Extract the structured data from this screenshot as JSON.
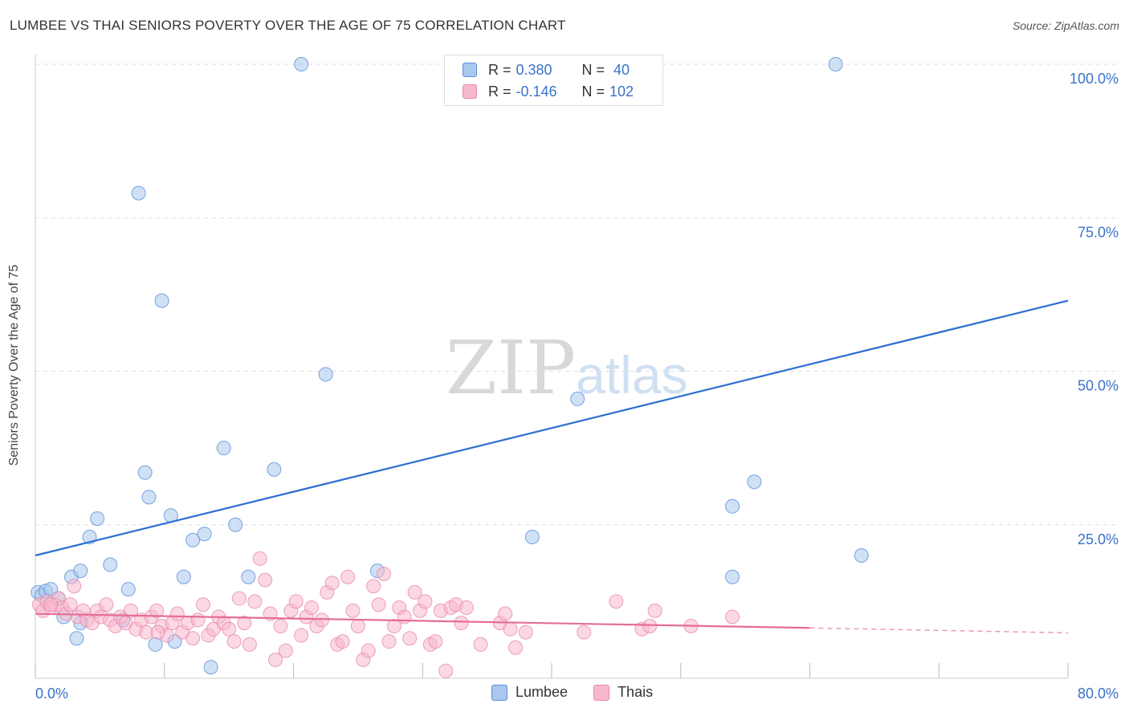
{
  "title": "LUMBEE VS THAI SENIORS POVERTY OVER THE AGE OF 75 CORRELATION CHART",
  "source": "Source: ZipAtlas.com",
  "watermark": {
    "zip": "ZIP",
    "atlas": "atlas"
  },
  "legend": {
    "series": [
      {
        "r_label": "R = ",
        "r_value": "0.380",
        "n_label": "N = ",
        "n_value": " 40",
        "color": "#aac8ee"
      },
      {
        "r_label": "R = ",
        "r_value": "-0.146",
        "n_label": "N = ",
        "n_value": "102",
        "color": "#f7b8cd"
      }
    ]
  },
  "bottom_legend": [
    {
      "label": "Lumbee",
      "color": "#aac8ee"
    },
    {
      "label": "Thais",
      "color": "#f7b8cd"
    }
  ],
  "chart_data": {
    "type": "scatter",
    "title": "LUMBEE VS THAI SENIORS POVERTY OVER THE AGE OF 75 CORRELATION CHART",
    "xlabel": "",
    "ylabel": "Seniors Poverty Over the Age of 75",
    "xlim": [
      0,
      80
    ],
    "ylim": [
      0,
      100
    ],
    "x_tick_labels": [
      "0.0%",
      "80.0%"
    ],
    "y_tick_labels": [
      "100.0%",
      "75.0%",
      "50.0%",
      "25.0%"
    ],
    "y_ticks": [
      100,
      75,
      50,
      25
    ],
    "series": [
      {
        "name": "Lumbee",
        "color": "#5a8fd8",
        "fill": "#aac8ee",
        "trend": {
          "x": [
            0,
            80
          ],
          "y": [
            20,
            61.5
          ],
          "color": "#2c6fd1"
        },
        "points": [
          [
            0.2,
            14
          ],
          [
            0.5,
            13.5
          ],
          [
            0.8,
            14.2
          ],
          [
            1.2,
            14.5
          ],
          [
            1.8,
            13
          ],
          [
            2.2,
            10
          ],
          [
            2.8,
            16.5
          ],
          [
            3.5,
            17.5
          ],
          [
            4.2,
            23
          ],
          [
            4.8,
            26
          ],
          [
            5.8,
            18.5
          ],
          [
            6.8,
            9.5
          ],
          [
            7.2,
            14.5
          ],
          [
            8,
            79
          ],
          [
            8.5,
            33.5
          ],
          [
            8.8,
            29.5
          ],
          [
            9.3,
            5.5
          ],
          [
            9.8,
            61.5
          ],
          [
            10.5,
            26.5
          ],
          [
            10.8,
            6
          ],
          [
            11.5,
            16.5
          ],
          [
            12.2,
            22.5
          ],
          [
            13.1,
            23.5
          ],
          [
            13.6,
            1.8
          ],
          [
            14.6,
            37.5
          ],
          [
            15.5,
            25
          ],
          [
            16.5,
            16.5
          ],
          [
            18.5,
            34
          ],
          [
            20.6,
            100
          ],
          [
            22.5,
            49.5
          ],
          [
            26.5,
            17.5
          ],
          [
            38.5,
            23
          ],
          [
            42,
            45.5
          ],
          [
            54,
            28
          ],
          [
            54,
            16.5
          ],
          [
            55.7,
            32
          ],
          [
            62,
            100
          ],
          [
            64,
            20
          ],
          [
            3.2,
            6.5
          ],
          [
            3.5,
            9
          ]
        ]
      },
      {
        "name": "Thais",
        "color": "#e98aa9",
        "fill": "#f7b8cd",
        "trend": {
          "x": [
            0,
            60,
            80
          ],
          "y": [
            10.5,
            8.2,
            7.4
          ],
          "color": "#e56d96",
          "dash_from": 60
        },
        "points": [
          [
            0.3,
            12
          ],
          [
            0.6,
            11
          ],
          [
            0.9,
            12.5
          ],
          [
            1.2,
            11.5
          ],
          [
            1.5,
            12
          ],
          [
            1.8,
            13
          ],
          [
            2.1,
            11.5
          ],
          [
            2.4,
            10.5
          ],
          [
            2.7,
            12
          ],
          [
            3,
            15
          ],
          [
            3.3,
            10
          ],
          [
            3.7,
            11
          ],
          [
            4,
            9.5
          ],
          [
            4.4,
            9
          ],
          [
            4.8,
            11
          ],
          [
            5.1,
            10
          ],
          [
            5.5,
            12
          ],
          [
            5.8,
            9.5
          ],
          [
            6.2,
            8.5
          ],
          [
            6.6,
            10
          ],
          [
            7,
            9
          ],
          [
            7.4,
            11
          ],
          [
            7.8,
            8
          ],
          [
            8.2,
            9.5
          ],
          [
            8.6,
            7.5
          ],
          [
            9,
            10
          ],
          [
            9.4,
            11
          ],
          [
            9.8,
            8.5
          ],
          [
            10.2,
            7
          ],
          [
            10.6,
            9
          ],
          [
            11,
            10.5
          ],
          [
            11.4,
            7.5
          ],
          [
            11.8,
            9
          ],
          [
            12.2,
            6.5
          ],
          [
            12.6,
            9.5
          ],
          [
            13,
            12
          ],
          [
            13.4,
            7
          ],
          [
            13.8,
            8
          ],
          [
            14.2,
            10
          ],
          [
            14.6,
            9
          ],
          [
            15,
            8
          ],
          [
            15.4,
            6
          ],
          [
            15.8,
            13
          ],
          [
            16.2,
            9
          ],
          [
            16.6,
            5.5
          ],
          [
            17,
            12.5
          ],
          [
            17.4,
            19.5
          ],
          [
            17.8,
            16
          ],
          [
            18.2,
            10.5
          ],
          [
            18.6,
            3
          ],
          [
            19,
            8.5
          ],
          [
            19.4,
            4.5
          ],
          [
            19.8,
            11
          ],
          [
            20.2,
            12.5
          ],
          [
            20.6,
            7
          ],
          [
            21,
            10
          ],
          [
            21.4,
            11.5
          ],
          [
            21.8,
            8.5
          ],
          [
            22.2,
            9.5
          ],
          [
            22.6,
            14
          ],
          [
            23,
            15.5
          ],
          [
            23.4,
            5.5
          ],
          [
            23.8,
            6
          ],
          [
            24.2,
            16.5
          ],
          [
            24.6,
            11
          ],
          [
            25,
            8.5
          ],
          [
            25.4,
            3
          ],
          [
            25.8,
            4.5
          ],
          [
            26.2,
            15
          ],
          [
            26.6,
            12
          ],
          [
            27,
            17
          ],
          [
            27.4,
            6
          ],
          [
            27.8,
            8.5
          ],
          [
            28.2,
            11.5
          ],
          [
            28.6,
            10
          ],
          [
            29,
            6.5
          ],
          [
            29.4,
            14
          ],
          [
            29.8,
            11
          ],
          [
            30.2,
            12.5
          ],
          [
            30.6,
            5.5
          ],
          [
            31,
            6
          ],
          [
            31.4,
            11
          ],
          [
            31.8,
            1.2
          ],
          [
            32.2,
            11.5
          ],
          [
            32.6,
            12
          ],
          [
            33,
            9
          ],
          [
            33.4,
            11.5
          ],
          [
            34.5,
            5.5
          ],
          [
            36,
            9
          ],
          [
            36.4,
            10.5
          ],
          [
            36.8,
            8
          ],
          [
            37.2,
            5
          ],
          [
            38,
            7.5
          ],
          [
            42.5,
            7.5
          ],
          [
            45,
            12.5
          ],
          [
            47,
            8
          ],
          [
            47.6,
            8.5
          ],
          [
            48,
            11
          ],
          [
            50.8,
            8.5
          ],
          [
            54,
            10
          ],
          [
            1.2,
            12
          ],
          [
            9.5,
            7.5
          ]
        ]
      }
    ]
  }
}
